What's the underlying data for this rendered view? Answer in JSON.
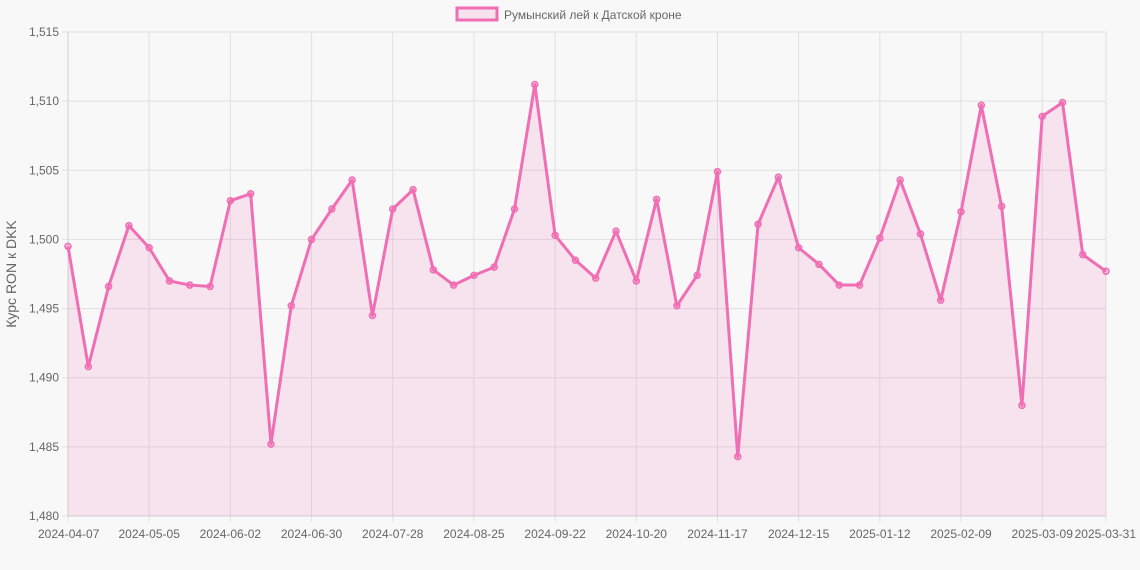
{
  "chart_data": {
    "type": "line",
    "title": "",
    "xlabel": "",
    "ylabel": "Курс RON к DKK",
    "ylim": [
      1.48,
      1.515
    ],
    "ytick_step": 0.005,
    "yticks": [
      "1,480",
      "1,485",
      "1,490",
      "1,495",
      "1,500",
      "1,505",
      "1,510",
      "1,515"
    ],
    "xtick_labels": [
      "2024-04-07",
      "2024-05-05",
      "2024-06-02",
      "2024-06-30",
      "2024-07-28",
      "2024-08-25",
      "2024-09-22",
      "2024-10-20",
      "2024-11-17",
      "2024-12-15",
      "2025-01-12",
      "2025-02-09",
      "2025-03-09",
      "2025-03-31"
    ],
    "grid": true,
    "legend_position": "top-center",
    "series": [
      {
        "name": "Румынский лей к Датской кроне",
        "color": "#f06eb4",
        "fill": "rgba(240,110,180,0.15)",
        "x": [
          "2024-04-07",
          "2024-04-14",
          "2024-04-21",
          "2024-04-28",
          "2024-05-05",
          "2024-05-12",
          "2024-05-19",
          "2024-05-26",
          "2024-06-02",
          "2024-06-09",
          "2024-06-16",
          "2024-06-23",
          "2024-06-30",
          "2024-07-07",
          "2024-07-14",
          "2024-07-21",
          "2024-07-28",
          "2024-08-04",
          "2024-08-11",
          "2024-08-18",
          "2024-08-25",
          "2024-09-01",
          "2024-09-08",
          "2024-09-15",
          "2024-09-22",
          "2024-09-29",
          "2024-10-06",
          "2024-10-13",
          "2024-10-20",
          "2024-10-27",
          "2024-11-03",
          "2024-11-10",
          "2024-11-17",
          "2024-11-24",
          "2024-12-01",
          "2024-12-08",
          "2024-12-15",
          "2024-12-22",
          "2024-12-29",
          "2025-01-05",
          "2025-01-12",
          "2025-01-19",
          "2025-01-26",
          "2025-02-02",
          "2025-02-09",
          "2025-02-16",
          "2025-02-23",
          "2025-03-02",
          "2025-03-09",
          "2025-03-16",
          "2025-03-23",
          "2025-03-31"
        ],
        "values": [
          1.4995,
          1.4908,
          1.4966,
          1.501,
          1.4994,
          1.497,
          1.4967,
          1.4966,
          1.5028,
          1.5033,
          1.4852,
          1.4952,
          1.5,
          1.5022,
          1.5043,
          1.4945,
          1.5022,
          1.5036,
          1.4978,
          1.4967,
          1.4974,
          1.498,
          1.5022,
          1.5112,
          1.5003,
          1.4985,
          1.4972,
          1.5006,
          1.497,
          1.5029,
          1.4952,
          1.4974,
          1.5049,
          1.4843,
          1.5011,
          1.5045,
          1.4994,
          1.4982,
          1.4967,
          1.4967,
          1.5001,
          1.5043,
          1.5004,
          1.4956,
          1.502,
          1.5097,
          1.5024,
          1.488,
          1.5089,
          1.5099,
          1.4989,
          1.4977
        ]
      }
    ]
  }
}
